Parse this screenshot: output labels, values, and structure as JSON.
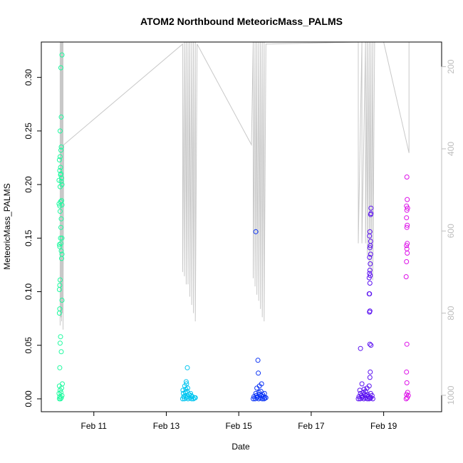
{
  "chart_data": {
    "type": "scatter",
    "title": "ATOM2 Northbound MeteoricMass_PALMS",
    "xlabel": "Date",
    "ylabel": "MeteoricMass_PALMS",
    "x_ticks": [
      "Feb 11",
      "Feb 13",
      "Feb 15",
      "Feb 17",
      "Feb 19"
    ],
    "x_tick_days": [
      11,
      13,
      15,
      17,
      19
    ],
    "xlim_days": [
      9.55,
      20.6
    ],
    "ylim": [
      -0.012,
      0.333
    ],
    "y_ticks": [
      0.0,
      0.05,
      0.1,
      0.15,
      0.2,
      0.25,
      0.3
    ],
    "y_tick_labels": [
      "0.00",
      "0.05",
      "0.10",
      "0.15",
      "0.20",
      "0.25",
      "0.30"
    ],
    "secondary_axis": {
      "ticks": [
        200,
        400,
        600,
        800,
        1000
      ],
      "ylim_reversed": [
        1040,
        140
      ],
      "color": "#bdbdbd"
    },
    "grid": false,
    "series": [
      {
        "color": "#1dfa9f",
        "points": [
          [
            10.05,
            0.0
          ],
          [
            10.08,
            0.0
          ],
          [
            10.1,
            0.001
          ],
          [
            10.06,
            0.002
          ],
          [
            10.12,
            0.003
          ],
          [
            10.04,
            0.005
          ],
          [
            10.09,
            0.006
          ],
          [
            10.07,
            0.008
          ],
          [
            10.11,
            0.01
          ],
          [
            10.05,
            0.012
          ],
          [
            10.13,
            0.014
          ],
          [
            10.06,
            0.029
          ],
          [
            10.1,
            0.044
          ],
          [
            10.07,
            0.052
          ],
          [
            10.08,
            0.058
          ],
          [
            10.05,
            0.08
          ],
          [
            10.06,
            0.084
          ],
          [
            10.12,
            0.092
          ],
          [
            10.05,
            0.102
          ],
          [
            10.06,
            0.106
          ],
          [
            10.07,
            0.111
          ],
          [
            10.11,
            0.131
          ],
          [
            10.12,
            0.135
          ],
          [
            10.1,
            0.138
          ],
          [
            10.06,
            0.142
          ],
          [
            10.05,
            0.144
          ],
          [
            10.09,
            0.145
          ],
          [
            10.08,
            0.15
          ],
          [
            10.12,
            0.15
          ],
          [
            10.09,
            0.16
          ],
          [
            10.1,
            0.168
          ],
          [
            10.07,
            0.175
          ],
          [
            10.06,
            0.18
          ],
          [
            10.04,
            0.182
          ],
          [
            10.08,
            0.184
          ],
          [
            10.12,
            0.181
          ],
          [
            10.11,
            0.185
          ],
          [
            10.07,
            0.198
          ],
          [
            10.12,
            0.2
          ],
          [
            10.04,
            0.204
          ],
          [
            10.1,
            0.203
          ],
          [
            10.11,
            0.206
          ],
          [
            10.08,
            0.209
          ],
          [
            10.09,
            0.21
          ],
          [
            10.06,
            0.213
          ],
          [
            10.08,
            0.216
          ],
          [
            10.05,
            0.223
          ],
          [
            10.07,
            0.226
          ],
          [
            10.09,
            0.232
          ],
          [
            10.1,
            0.235
          ],
          [
            10.07,
            0.25
          ],
          [
            10.1,
            0.263
          ],
          [
            10.09,
            0.309
          ],
          [
            10.12,
            0.321
          ]
        ]
      },
      {
        "color": "#00c5f0",
        "points": [
          [
            13.45,
            0.0
          ],
          [
            13.5,
            0.0
          ],
          [
            13.55,
            0.001
          ],
          [
            13.6,
            0.0
          ],
          [
            13.65,
            0.001
          ],
          [
            13.7,
            0.0
          ],
          [
            13.75,
            0.0
          ],
          [
            13.8,
            0.001
          ],
          [
            13.48,
            0.002
          ],
          [
            13.52,
            0.003
          ],
          [
            13.58,
            0.002
          ],
          [
            13.62,
            0.004
          ],
          [
            13.68,
            0.003
          ],
          [
            13.72,
            0.002
          ],
          [
            13.78,
            0.001
          ],
          [
            13.47,
            0.005
          ],
          [
            13.53,
            0.006
          ],
          [
            13.57,
            0.007
          ],
          [
            13.63,
            0.004
          ],
          [
            13.67,
            0.005
          ],
          [
            13.46,
            0.008
          ],
          [
            13.54,
            0.009
          ],
          [
            13.59,
            0.01
          ],
          [
            13.51,
            0.012
          ],
          [
            13.56,
            0.014
          ],
          [
            13.55,
            0.016
          ],
          [
            13.58,
            0.029
          ]
        ]
      },
      {
        "color": "#0a33f5",
        "points": [
          [
            15.4,
            0.0
          ],
          [
            15.45,
            0.0
          ],
          [
            15.5,
            0.001
          ],
          [
            15.55,
            0.0
          ],
          [
            15.6,
            0.001
          ],
          [
            15.65,
            0.0
          ],
          [
            15.7,
            0.0
          ],
          [
            15.75,
            0.001
          ],
          [
            15.42,
            0.002
          ],
          [
            15.48,
            0.003
          ],
          [
            15.52,
            0.002
          ],
          [
            15.58,
            0.004
          ],
          [
            15.62,
            0.003
          ],
          [
            15.68,
            0.002
          ],
          [
            15.72,
            0.001
          ],
          [
            15.47,
            0.005
          ],
          [
            15.56,
            0.006
          ],
          [
            15.61,
            0.007
          ],
          [
            15.66,
            0.004
          ],
          [
            15.71,
            0.005
          ],
          [
            15.5,
            0.01
          ],
          [
            15.57,
            0.012
          ],
          [
            15.63,
            0.014
          ],
          [
            15.54,
            0.024
          ],
          [
            15.53,
            0.036
          ],
          [
            15.47,
            0.156
          ]
        ]
      },
      {
        "color": "#5a10f0",
        "points": [
          [
            18.3,
            0.0
          ],
          [
            18.35,
            0.0
          ],
          [
            18.4,
            0.001
          ],
          [
            18.45,
            0.0
          ],
          [
            18.5,
            0.001
          ],
          [
            18.55,
            0.0
          ],
          [
            18.6,
            0.0
          ],
          [
            18.65,
            0.001
          ],
          [
            18.7,
            0.0
          ],
          [
            18.32,
            0.002
          ],
          [
            18.38,
            0.003
          ],
          [
            18.42,
            0.002
          ],
          [
            18.48,
            0.004
          ],
          [
            18.52,
            0.003
          ],
          [
            18.58,
            0.002
          ],
          [
            18.62,
            0.001
          ],
          [
            18.68,
            0.003
          ],
          [
            18.36,
            0.005
          ],
          [
            18.44,
            0.006
          ],
          [
            18.5,
            0.007
          ],
          [
            18.56,
            0.004
          ],
          [
            18.64,
            0.005
          ],
          [
            18.34,
            0.008
          ],
          [
            18.46,
            0.009
          ],
          [
            18.54,
            0.01
          ],
          [
            18.6,
            0.012
          ],
          [
            18.4,
            0.014
          ],
          [
            18.62,
            0.02
          ],
          [
            18.63,
            0.025
          ],
          [
            18.36,
            0.047
          ],
          [
            18.62,
            0.051
          ],
          [
            18.65,
            0.05
          ],
          [
            18.61,
            0.081
          ],
          [
            18.62,
            0.082
          ],
          [
            18.6,
            0.098
          ],
          [
            18.61,
            0.098
          ],
          [
            18.62,
            0.108
          ],
          [
            18.6,
            0.113
          ],
          [
            18.63,
            0.115
          ],
          [
            18.61,
            0.117
          ],
          [
            18.62,
            0.12
          ],
          [
            18.63,
            0.126
          ],
          [
            18.61,
            0.132
          ],
          [
            18.64,
            0.135
          ],
          [
            18.62,
            0.141
          ],
          [
            18.63,
            0.143
          ],
          [
            18.64,
            0.147
          ],
          [
            18.61,
            0.152
          ],
          [
            18.62,
            0.156
          ],
          [
            18.64,
            0.172
          ],
          [
            18.65,
            0.173
          ],
          [
            18.65,
            0.178
          ]
        ]
      },
      {
        "color": "#dd10e8",
        "points": [
          [
            19.62,
            0.0
          ],
          [
            19.65,
            0.001
          ],
          [
            19.68,
            0.003
          ],
          [
            19.63,
            0.004
          ],
          [
            19.66,
            0.006
          ],
          [
            19.64,
            0.015
          ],
          [
            19.63,
            0.025
          ],
          [
            19.64,
            0.051
          ],
          [
            19.62,
            0.114
          ],
          [
            19.63,
            0.128
          ],
          [
            19.65,
            0.136
          ],
          [
            19.64,
            0.14
          ],
          [
            19.63,
            0.143
          ],
          [
            19.65,
            0.145
          ],
          [
            19.64,
            0.16
          ],
          [
            19.65,
            0.162
          ],
          [
            19.63,
            0.169
          ],
          [
            19.64,
            0.176
          ],
          [
            19.66,
            0.178
          ],
          [
            19.63,
            0.18
          ],
          [
            19.65,
            0.186
          ],
          [
            19.64,
            0.207
          ]
        ]
      }
    ],
    "altitude_trace": {
      "color": "#c8c8c8",
      "description_points": [
        [
          10.07,
          140
        ],
        [
          10.07,
          830
        ],
        [
          10.09,
          140
        ],
        [
          10.09,
          810
        ],
        [
          10.11,
          140
        ],
        [
          10.11,
          820
        ],
        [
          10.13,
          140
        ],
        [
          10.13,
          800
        ],
        [
          10.15,
          140
        ],
        [
          10.15,
          840
        ],
        [
          10.17,
          390
        ],
        [
          13.45,
          145
        ],
        [
          13.45,
          700
        ],
        [
          13.5,
          140
        ],
        [
          13.5,
          710
        ],
        [
          13.55,
          140
        ],
        [
          13.55,
          730
        ],
        [
          13.6,
          140
        ],
        [
          13.6,
          730
        ],
        [
          13.65,
          140
        ],
        [
          13.65,
          760
        ],
        [
          13.7,
          140
        ],
        [
          13.7,
          780
        ],
        [
          13.75,
          140
        ],
        [
          13.75,
          800
        ],
        [
          13.8,
          140
        ],
        [
          13.8,
          820
        ],
        [
          13.85,
          145
        ],
        [
          15.35,
          390
        ],
        [
          15.4,
          140
        ],
        [
          15.4,
          715
        ],
        [
          15.45,
          140
        ],
        [
          15.45,
          735
        ],
        [
          15.5,
          140
        ],
        [
          15.5,
          755
        ],
        [
          15.55,
          140
        ],
        [
          15.55,
          770
        ],
        [
          15.6,
          140
        ],
        [
          15.6,
          790
        ],
        [
          15.65,
          140
        ],
        [
          15.65,
          810
        ],
        [
          15.7,
          140
        ],
        [
          15.7,
          820
        ],
        [
          15.75,
          145
        ],
        [
          18.3,
          140
        ],
        [
          18.3,
          630
        ],
        [
          18.4,
          140
        ],
        [
          18.4,
          630
        ],
        [
          18.5,
          140
        ],
        [
          18.5,
          630
        ],
        [
          18.55,
          140
        ],
        [
          18.55,
          660
        ],
        [
          18.6,
          140
        ],
        [
          18.6,
          690
        ],
        [
          18.65,
          140
        ],
        [
          18.65,
          700
        ],
        [
          18.7,
          140
        ],
        [
          18.7,
          720
        ],
        [
          18.75,
          140
        ],
        [
          19.0,
          140
        ],
        [
          19.7,
          410
        ],
        [
          19.7,
          140
        ]
      ]
    }
  }
}
